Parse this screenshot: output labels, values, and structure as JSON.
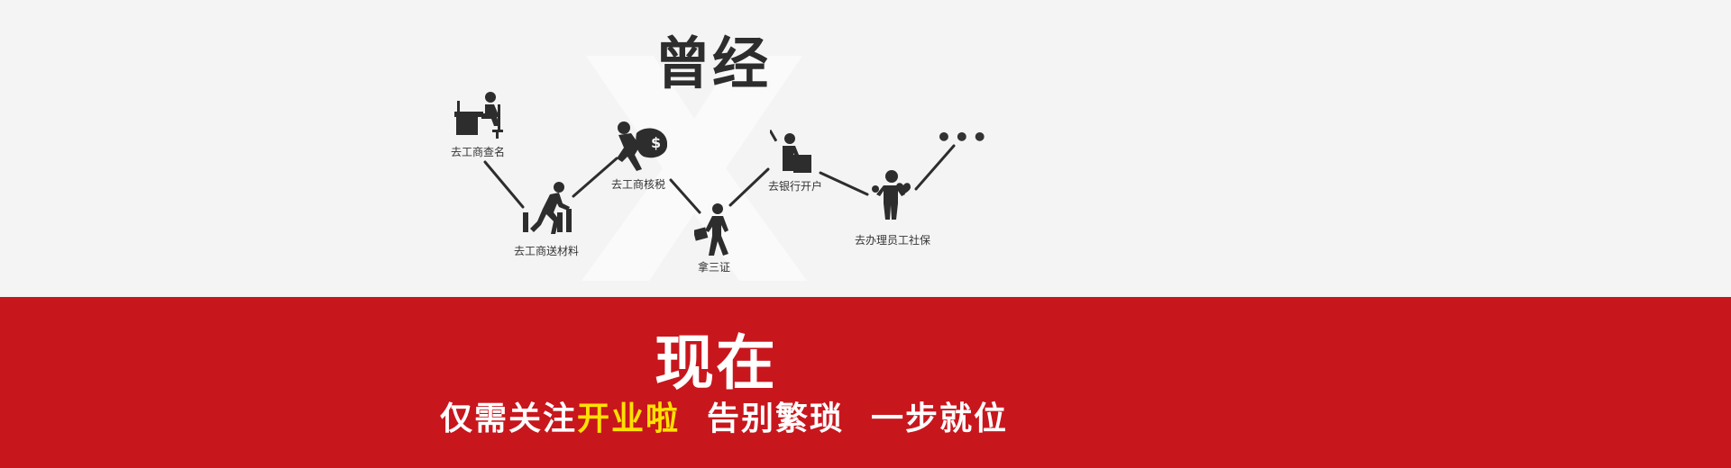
{
  "past": {
    "title": "曾经",
    "steps": [
      {
        "label": "去工商查名",
        "icon": "desk-office-icon"
      },
      {
        "label": "去工商送材料",
        "icon": "running-with-stairs-icon"
      },
      {
        "label": "去工商核税",
        "icon": "money-bag-carrier-icon"
      },
      {
        "label": "拿三证",
        "icon": "walking-briefcase-icon"
      },
      {
        "label": "去银行开户",
        "icon": "bank-counter-icon"
      },
      {
        "label": "去办理员工社保",
        "icon": "worker-social-insurance-icon"
      }
    ],
    "ellipsis": "•••"
  },
  "now": {
    "title": "现在",
    "slogan_1a": "仅需关注",
    "slogan_1b": "开业啦",
    "slogan_2": "告别繁琐",
    "slogan_3": "一步就位"
  },
  "colors": {
    "red": "#c8161d",
    "highlight": "#ffe100",
    "dark": "#2d2d2d",
    "light_bg": "#f4f4f4"
  }
}
